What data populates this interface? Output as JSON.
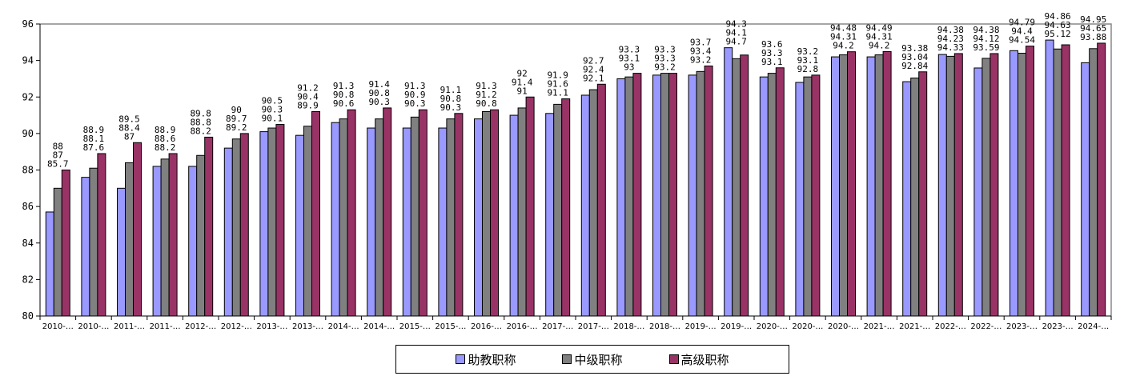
{
  "chart_data": {
    "type": "bar",
    "title": "",
    "xlabel": "",
    "ylabel": "",
    "ylim": [
      80,
      96
    ],
    "yticks": [
      80,
      82,
      84,
      86,
      88,
      90,
      92,
      94,
      96
    ],
    "grid": false,
    "legend_position": "bottom",
    "categories": [
      "2010-…",
      "2010-…",
      "2011-…",
      "2011-…",
      "2012-…",
      "2012-…",
      "2013-…",
      "2013-…",
      "2014-…",
      "2014-…",
      "2015-…",
      "2015-…",
      "2016-…",
      "2016-…",
      "2017-…",
      "2017-…",
      "2018-…",
      "2018-…",
      "2019-…",
      "2019-…",
      "2020-…",
      "2020-…",
      "2020-…",
      "2021-…",
      "2021-…",
      "2022-…",
      "2022-…",
      "2023-…",
      "2023-…",
      "2024-…"
    ],
    "series": [
      {
        "name": "助教职称",
        "color": "#9999FF",
        "values": [
          85.7,
          87.6,
          87,
          88.2,
          88.2,
          89.2,
          90.1,
          89.9,
          90.6,
          90.3,
          90.3,
          90.3,
          90.8,
          91,
          91.1,
          92.1,
          93,
          93.2,
          93.2,
          94.7,
          93.1,
          92.8,
          94.2,
          94.2,
          92.84,
          94.33,
          93.59,
          94.54,
          95.12,
          93.88
        ]
      },
      {
        "name": "中级职称",
        "color": "#808080",
        "values": [
          87,
          88.1,
          88.4,
          88.6,
          88.8,
          89.7,
          90.3,
          90.4,
          90.8,
          90.8,
          90.9,
          90.8,
          91.2,
          91.4,
          91.6,
          92.4,
          93.1,
          93.3,
          93.4,
          94.1,
          93.3,
          93.1,
          94.31,
          94.31,
          93.04,
          94.23,
          94.12,
          94.4,
          94.63,
          94.65
        ]
      },
      {
        "name": "高级职称",
        "color": "#993366",
        "values": [
          88,
          88.9,
          89.5,
          88.9,
          89.8,
          90,
          90.5,
          91.2,
          91.3,
          91.4,
          91.3,
          91.1,
          91.3,
          92,
          91.9,
          92.7,
          93.3,
          93.3,
          93.7,
          94.3,
          93.6,
          93.2,
          94.48,
          94.49,
          93.38,
          94.38,
          94.38,
          94.79,
          94.86,
          94.95
        ]
      }
    ]
  }
}
